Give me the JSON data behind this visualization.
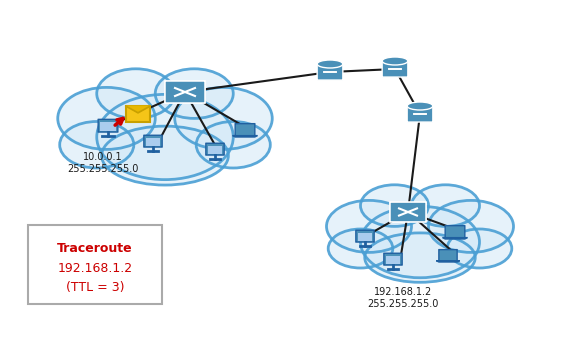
{
  "title": "Traceroute 192.168.1.2 (TTL=3)",
  "traceroute_label": "Traceroute\n192.168.1.2\n(TTL = 3)",
  "left_cloud_label": "10.0.0.1\n255.255.255.0",
  "right_cloud_label": "192.168.1.2\n255.255.255.0",
  "cloud_edge_color": "#4a9fd4",
  "cloud_face_color": "#d6eaf8",
  "cloud_alpha": 0.7,
  "line_color": "#1a1a1a",
  "router_color": "#4a90b8",
  "switch_color": "#3a7fa8",
  "pc_color": "#4a90b8",
  "envelope_color": "#f5c518",
  "arrow_color": "#cc0000",
  "text_color_red": "#cc0000",
  "text_color_dark": "#1a1a1a",
  "box_edge_color": "#aaaaaa",
  "figsize": [
    5.61,
    3.47
  ],
  "dpi": 100
}
